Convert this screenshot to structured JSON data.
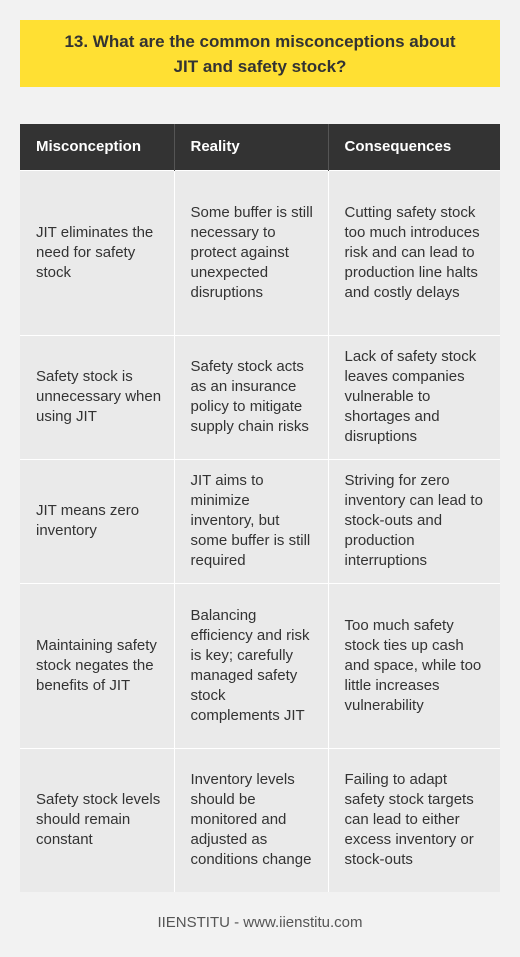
{
  "title": "13. What are the common misconceptions about JIT and safety stock?",
  "table": {
    "headers": [
      "Misconception",
      "Reality",
      "Consequences"
    ],
    "rows": [
      {
        "misconception": "JIT eliminates the need for safety stock",
        "reality": "Some buffer is still necessary to protect against unexpected disruptions",
        "consequences": "Cutting safety stock too much introduces risk and can lead to production line halts and costly delays"
      },
      {
        "misconception": "Safety stock is unnecessary when using JIT",
        "reality": "Safety stock acts as an insurance policy to mitigate supply chain risks",
        "consequences": "Lack of safety stock leaves companies vulnerable to shortages and disruptions"
      },
      {
        "misconception": "JIT means zero inventory",
        "reality": "JIT aims to minimize inventory, but some buffer is still required",
        "consequences": "Striving for zero inventory can lead to stock-outs and production interruptions"
      },
      {
        "misconception": "Maintaining safety stock negates the benefits of JIT",
        "reality": "Balancing efficiency and risk is key; carefully managed safety stock complements JIT",
        "consequences": "Too much safety stock ties up cash and space, while too little increases vulnerability"
      },
      {
        "misconception": "Safety stock levels should remain constant",
        "reality": "Inventory levels should be monitored and adjusted as conditions change",
        "consequences": "Failing to adapt safety stock targets can lead to either excess inventory or stock-outs"
      }
    ]
  },
  "footer": "IIENSTITU - www.iienstitu.com",
  "colors": {
    "banner": "#ffe033",
    "header_bg": "#333333",
    "cell_bg": "#eaeaea",
    "page_bg": "#f2f2f2"
  }
}
